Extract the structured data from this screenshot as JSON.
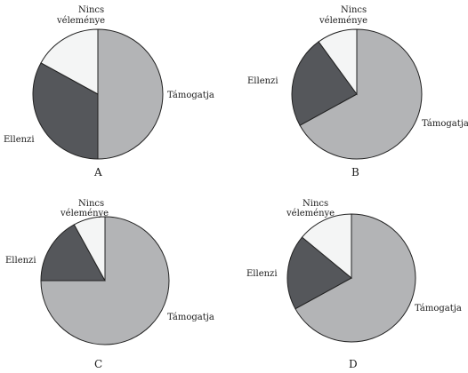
{
  "colors": {
    "tamogatja": "#b3b4b6",
    "ellenzi": "#55575b",
    "nincs_velemenye": "#f4f5f5",
    "stroke": "#222222"
  },
  "chart_data": [
    {
      "type": "pie",
      "panel_label": "A",
      "categories": [
        "Támogatja",
        "Ellenzi",
        "Nincs véleménye"
      ],
      "values": [
        50,
        33,
        17
      ],
      "labels": {
        "support": "Támogatja",
        "oppose": "Ellenzi",
        "no_opinion_line1": "Nincs",
        "no_opinion_line2": "véleménye"
      }
    },
    {
      "type": "pie",
      "panel_label": "B",
      "categories": [
        "Támogatja",
        "Ellenzi",
        "Nincs véleménye"
      ],
      "values": [
        67,
        23,
        10
      ],
      "labels": {
        "support": "Támogatja",
        "oppose": "Ellenzi",
        "no_opinion_line1": "Nincs",
        "no_opinion_line2": "véleménye"
      }
    },
    {
      "type": "pie",
      "panel_label": "C",
      "categories": [
        "Támogatja",
        "Ellenzi",
        "Nincs véleménye"
      ],
      "values": [
        75,
        17,
        8
      ],
      "labels": {
        "support": "Támogatja",
        "oppose": "Ellenzi",
        "no_opinion_line1": "Nincs",
        "no_opinion_line2": "véleménye"
      }
    },
    {
      "type": "pie",
      "panel_label": "D",
      "categories": [
        "Támogatja",
        "Ellenzi",
        "Nincs véleménye"
      ],
      "values": [
        67,
        19,
        14
      ],
      "labels": {
        "support": "Támogatja",
        "oppose": "Ellenzi",
        "no_opinion_line1": "Nincs",
        "no_opinion_line2": "véleménye"
      }
    }
  ]
}
